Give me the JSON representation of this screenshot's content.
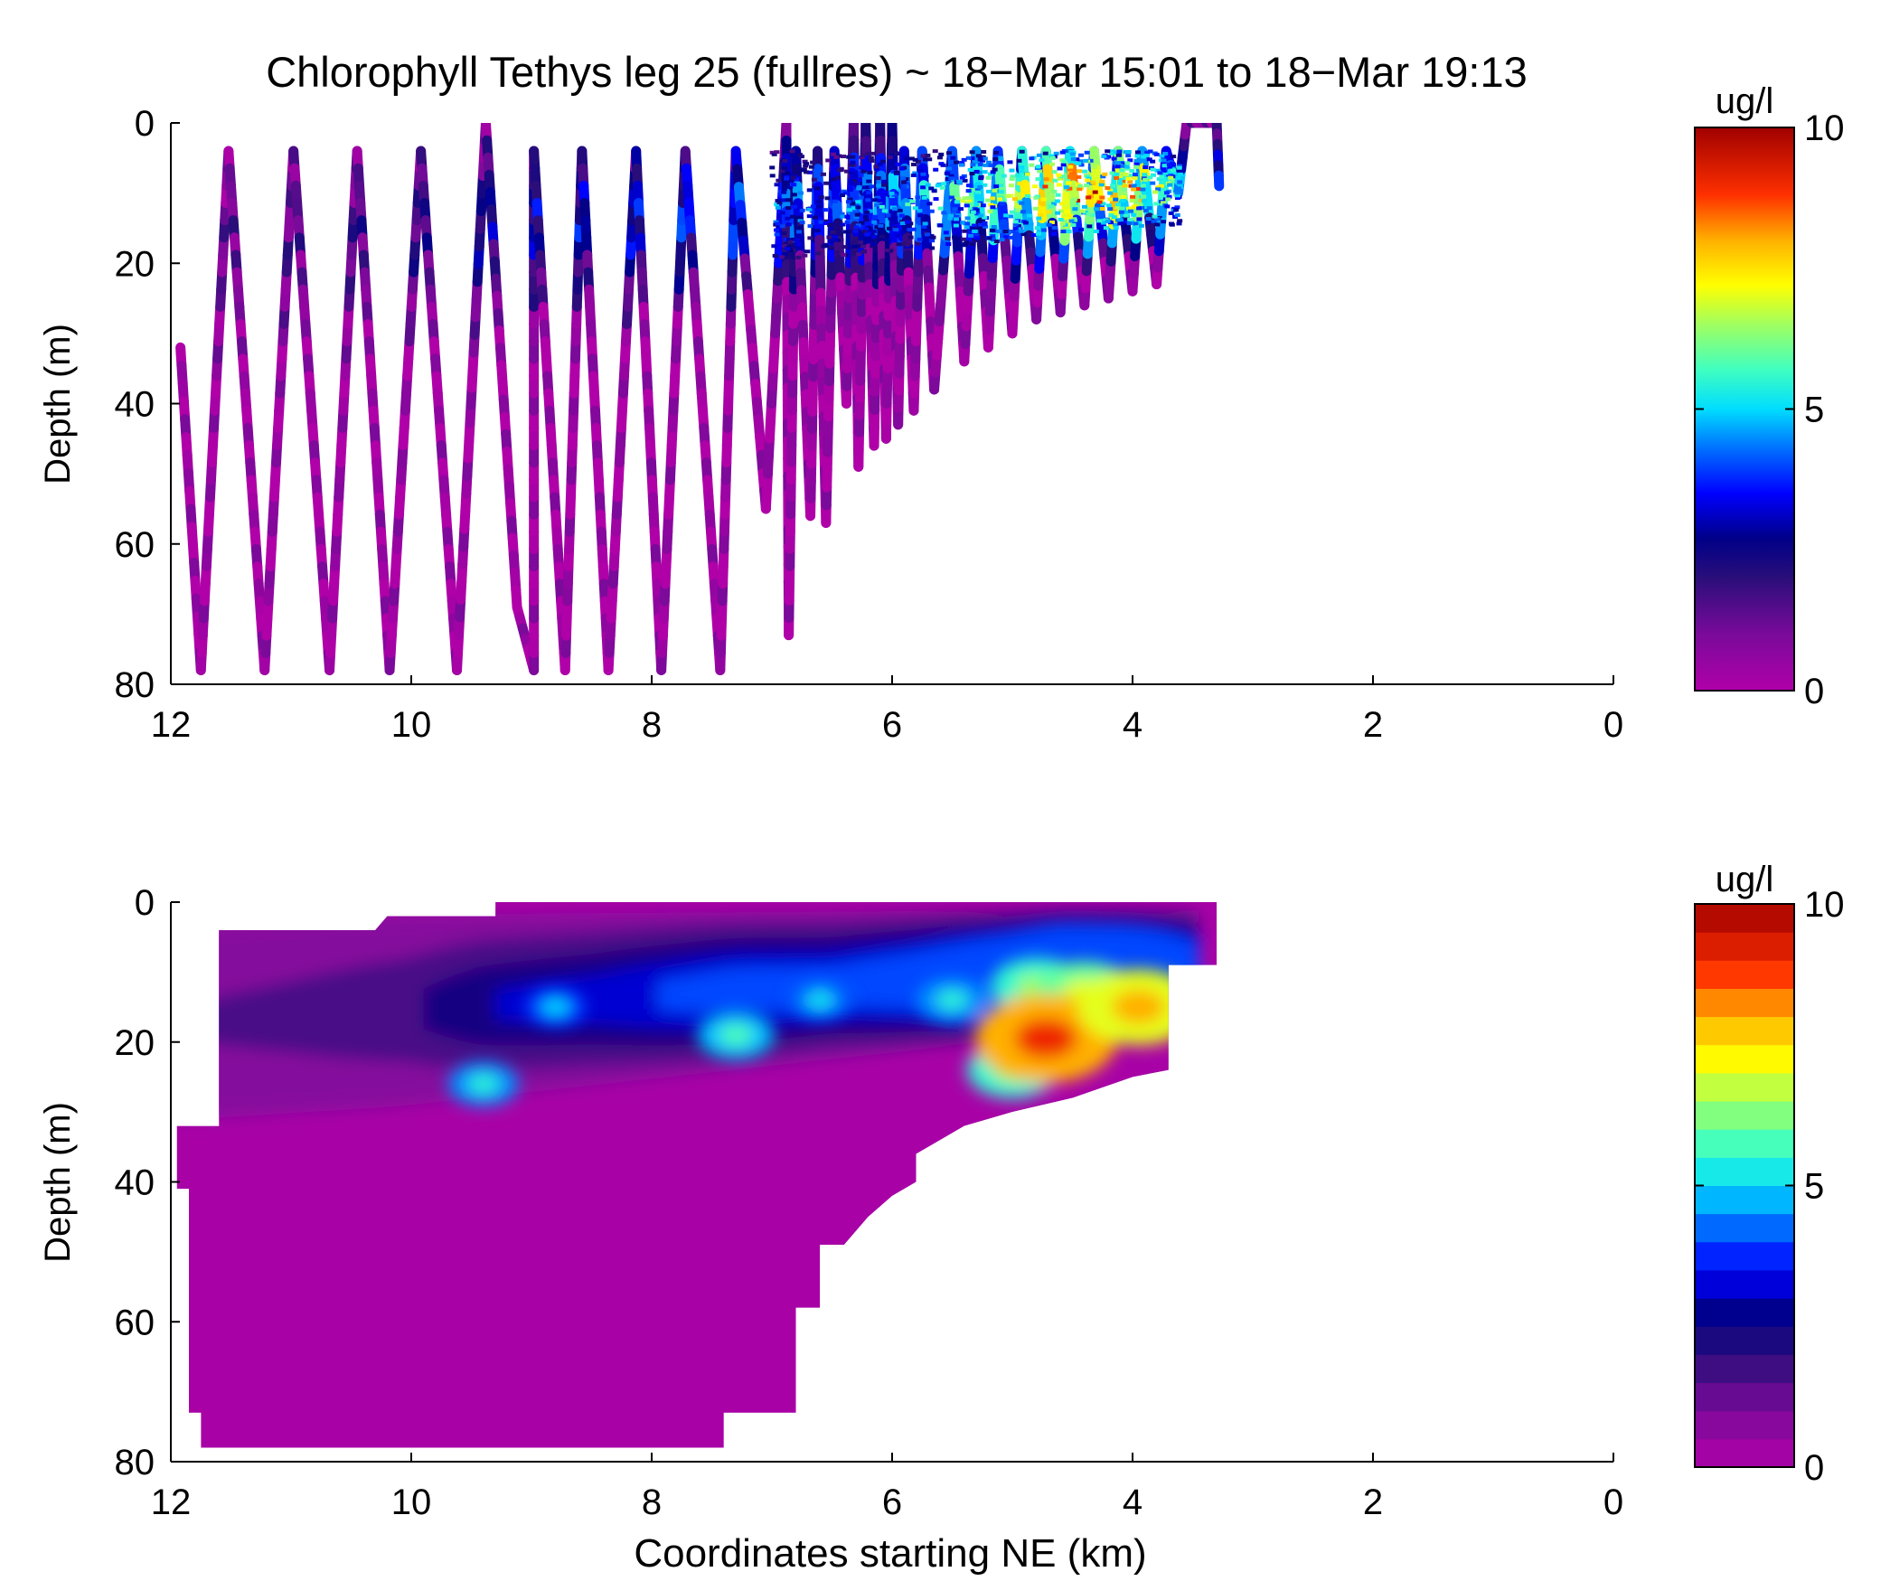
{
  "figure": {
    "title": "Chlorophyll Tethys leg 25 (fullres) ~ 18−Mar 15:01 to 18−Mar 19:13"
  },
  "chart_data": [
    {
      "type": "scatter",
      "name": "raw profiles",
      "title": "Chlorophyll Tethys leg 25 (fullres) ~ 18−Mar 15:01 to 18−Mar 19:13",
      "xlabel": "",
      "ylabel": "Depth (m)",
      "xlim": [
        12,
        0
      ],
      "ylim": [
        0,
        80
      ],
      "x_ticks": [
        "12",
        "10",
        "8",
        "6",
        "4",
        "2",
        "0"
      ],
      "y_ticks": [
        "0",
        "20",
        "40",
        "60",
        "80"
      ],
      "colorbar": {
        "label": "ug/l",
        "min": 0,
        "max": 10,
        "ticks": [
          "10",
          "5",
          "0"
        ],
        "colormap": "jet-variant"
      },
      "yo_path": [
        [
          11.92,
          32
        ],
        [
          11.75,
          78
        ],
        [
          11.52,
          4
        ],
        [
          11.22,
          78
        ],
        [
          10.98,
          4
        ],
        [
          10.68,
          78
        ],
        [
          10.45,
          4
        ],
        [
          10.18,
          78
        ],
        [
          9.92,
          4
        ],
        [
          9.62,
          78
        ],
        [
          9.38,
          0
        ],
        [
          9.12,
          69
        ],
        [
          8.98,
          78
        ],
        [
          8.98,
          4
        ],
        [
          8.72,
          78
        ],
        [
          8.58,
          4
        ],
        [
          8.36,
          78
        ],
        [
          8.13,
          4
        ],
        [
          7.92,
          78
        ],
        [
          7.72,
          4
        ],
        [
          7.43,
          78
        ],
        [
          7.3,
          4
        ],
        [
          7.05,
          55
        ],
        [
          6.88,
          0
        ],
        [
          6.86,
          73
        ],
        [
          6.8,
          4
        ],
        [
          6.68,
          56
        ],
        [
          6.62,
          4
        ],
        [
          6.55,
          57
        ],
        [
          6.48,
          4
        ],
        [
          6.38,
          40
        ],
        [
          6.32,
          0
        ],
        [
          6.28,
          49
        ],
        [
          6.22,
          0
        ],
        [
          6.15,
          46
        ],
        [
          6.1,
          0
        ],
        [
          6.05,
          45
        ],
        [
          6.0,
          0
        ],
        [
          5.95,
          43
        ],
        [
          5.9,
          4
        ],
        [
          5.82,
          41
        ],
        [
          5.75,
          4
        ],
        [
          5.65,
          38
        ],
        [
          5.5,
          4
        ],
        [
          5.4,
          34
        ],
        [
          5.3,
          4
        ],
        [
          5.2,
          32
        ],
        [
          5.12,
          4
        ],
        [
          5.0,
          30
        ],
        [
          4.92,
          4
        ],
        [
          4.8,
          28
        ],
        [
          4.72,
          4
        ],
        [
          4.6,
          27
        ],
        [
          4.52,
          4
        ],
        [
          4.4,
          26
        ],
        [
          4.32,
          4
        ],
        [
          4.2,
          25
        ],
        [
          4.12,
          4
        ],
        [
          4.0,
          24
        ],
        [
          3.92,
          4
        ],
        [
          3.8,
          23
        ],
        [
          3.72,
          4
        ],
        [
          3.62,
          10
        ],
        [
          3.55,
          0
        ],
        [
          3.3,
          0
        ],
        [
          3.28,
          9
        ]
      ],
      "chl_layer_peak": [
        [
          11.9,
          1.2
        ],
        [
          11.0,
          1.5
        ],
        [
          10.0,
          2.0
        ],
        [
          9.4,
          2.8
        ],
        [
          8.5,
          3.2
        ],
        [
          7.3,
          4.2
        ],
        [
          6.5,
          4.0
        ],
        [
          5.8,
          4.8
        ],
        [
          5.0,
          6.5
        ],
        [
          4.6,
          8.5
        ],
        [
          4.0,
          7.5
        ],
        [
          3.7,
          6.0
        ],
        [
          3.3,
          3.5
        ]
      ]
    },
    {
      "type": "heatmap",
      "name": "gridded contour",
      "xlabel": "Coordinates starting NE (km)",
      "ylabel": "Depth (m)",
      "xlim": [
        12,
        0
      ],
      "ylim": [
        0,
        80
      ],
      "x_ticks": [
        "12",
        "10",
        "8",
        "6",
        "4",
        "2",
        "0"
      ],
      "y_ticks": [
        "0",
        "20",
        "40",
        "60",
        "80"
      ],
      "colorbar": {
        "label": "ug/l",
        "min": 0,
        "max": 10,
        "ticks": [
          "10",
          "5",
          "0"
        ],
        "levels": 20
      },
      "data_extent": [
        [
          11.95,
          32
        ],
        [
          11.6,
          32
        ],
        [
          11.6,
          4
        ],
        [
          10.3,
          4
        ],
        [
          10.2,
          2
        ],
        [
          9.3,
          2
        ],
        [
          9.3,
          0
        ],
        [
          3.3,
          0
        ],
        [
          3.3,
          9
        ],
        [
          3.7,
          9
        ],
        [
          3.7,
          24
        ],
        [
          4.0,
          25
        ],
        [
          4.5,
          28
        ],
        [
          5.0,
          30
        ],
        [
          5.4,
          32
        ],
        [
          5.6,
          34
        ],
        [
          5.8,
          36
        ],
        [
          5.8,
          40
        ],
        [
          6.0,
          42
        ],
        [
          6.2,
          45
        ],
        [
          6.4,
          49
        ],
        [
          6.6,
          49
        ],
        [
          6.6,
          58
        ],
        [
          6.8,
          58
        ],
        [
          6.8,
          73
        ],
        [
          7.4,
          73
        ],
        [
          7.4,
          78
        ],
        [
          11.75,
          78
        ],
        [
          11.75,
          73
        ],
        [
          11.85,
          73
        ],
        [
          11.85,
          41
        ],
        [
          11.95,
          41
        ]
      ],
      "hotspots": [
        {
          "x": 9.4,
          "depth": 26,
          "value": 5.5
        },
        {
          "x": 8.8,
          "depth": 15,
          "value": 5.0
        },
        {
          "x": 7.3,
          "depth": 19,
          "value": 5.8
        },
        {
          "x": 6.6,
          "depth": 14,
          "value": 5.2
        },
        {
          "x": 5.5,
          "depth": 14,
          "value": 5.5
        },
        {
          "x": 4.8,
          "depth": 12,
          "value": 6.5
        },
        {
          "x": 4.4,
          "depth": 13,
          "value": 7.0
        },
        {
          "x": 5.0,
          "depth": 24,
          "value": 6.5
        },
        {
          "x": 4.72,
          "depth": 19.5,
          "value": 9.0
        },
        {
          "x": 3.95,
          "depth": 15,
          "value": 8.0
        }
      ]
    }
  ]
}
